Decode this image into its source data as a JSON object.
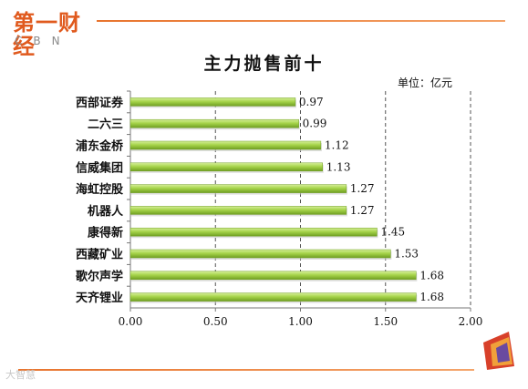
{
  "brand": {
    "name_cn": "第一财经",
    "name_en": "CBN"
  },
  "watermark": "大智慧",
  "chart_data": {
    "type": "bar",
    "orientation": "horizontal",
    "title": "主力抛售前十",
    "unit_label": "单位：亿元",
    "categories": [
      "西部证券",
      "二六三",
      "浦东金桥",
      "信威集团",
      "海虹控股",
      "机器人",
      "康得新",
      "西藏矿业",
      "歌尔声学",
      "天齐锂业"
    ],
    "values": [
      0.97,
      0.99,
      1.12,
      1.13,
      1.27,
      1.27,
      1.45,
      1.53,
      1.68,
      1.68
    ],
    "value_labels": [
      "0.97",
      "0.99",
      "1.12",
      "1.13",
      "1.27",
      "1.27",
      "1.45",
      "1.53",
      "1.68",
      "1.68"
    ],
    "xlim": [
      0,
      2.0
    ],
    "x_ticks": [
      "0.00",
      "0.50",
      "1.00",
      "1.50",
      "2.00"
    ],
    "grid": "vertical-dashed",
    "bar_color": "#9ccc3c"
  }
}
